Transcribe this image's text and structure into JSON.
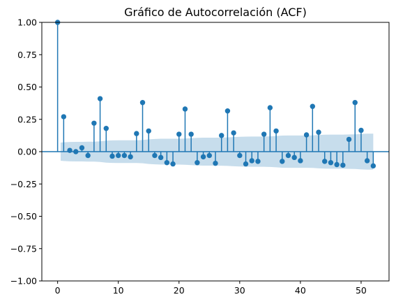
{
  "colors": {
    "marker": "#1f77b4",
    "band": "#1f77b4",
    "axis": "#000000",
    "background": "#ffffff"
  },
  "chart_data": {
    "type": "scatter",
    "style": "stem",
    "title": "Gráfico de Autocorrelación (ACF)",
    "xlabel": "",
    "ylabel": "",
    "xlim": [
      -2.6,
      54.6
    ],
    "ylim": [
      -1.0,
      1.0
    ],
    "xticks": [
      0,
      10,
      20,
      30,
      40,
      50
    ],
    "xtick_labels": [
      "0",
      "10",
      "20",
      "30",
      "40",
      "50"
    ],
    "yticks": [
      1.0,
      0.75,
      0.5,
      0.25,
      0.0,
      -0.25,
      -0.5,
      -0.75,
      -1.0
    ],
    "ytick_labels": [
      "1.00",
      "0.75",
      "0.50",
      "0.25",
      "0.00",
      "−0.25",
      "−0.50",
      "−0.75",
      "−1.00"
    ],
    "grid": false,
    "legend": false,
    "series": [
      {
        "lags": [
          0,
          1,
          2,
          3,
          4,
          5,
          6,
          7,
          8,
          9,
          10,
          11,
          12,
          13,
          14,
          15,
          16,
          17,
          18,
          19,
          20,
          21,
          22,
          23,
          24,
          25,
          26,
          27,
          28,
          29,
          30,
          31,
          32,
          33,
          34,
          35,
          36,
          37,
          38,
          39,
          40,
          41,
          42,
          43,
          44,
          45,
          46,
          47,
          48,
          49,
          50,
          51,
          52
        ],
        "values": [
          1.0,
          0.27,
          0.01,
          0.0,
          0.03,
          -0.03,
          0.22,
          0.41,
          0.18,
          -0.035,
          -0.03,
          -0.03,
          -0.04,
          0.14,
          0.38,
          0.16,
          -0.03,
          -0.045,
          -0.085,
          -0.095,
          0.135,
          0.33,
          0.135,
          -0.085,
          -0.04,
          -0.03,
          -0.09,
          0.125,
          0.315,
          0.145,
          -0.03,
          -0.095,
          -0.07,
          -0.075,
          0.135,
          0.34,
          0.16,
          -0.075,
          -0.03,
          -0.045,
          -0.07,
          0.13,
          0.35,
          0.15,
          -0.075,
          -0.085,
          -0.1,
          -0.105,
          0.095,
          0.38,
          0.165,
          -0.07,
          -0.11
        ]
      }
    ],
    "confidence_band": {
      "lags": [
        0,
        1,
        2,
        3,
        4,
        5,
        6,
        7,
        8,
        9,
        10,
        11,
        12,
        13,
        14,
        15,
        16,
        17,
        18,
        19,
        20,
        21,
        22,
        23,
        24,
        25,
        26,
        27,
        28,
        29,
        30,
        31,
        32,
        33,
        34,
        35,
        36,
        37,
        38,
        39,
        40,
        41,
        42,
        43,
        44,
        45,
        46,
        47,
        48,
        49,
        50,
        51,
        52
      ],
      "upper": [
        0.07,
        0.072,
        0.075,
        0.076,
        0.076,
        0.077,
        0.077,
        0.08,
        0.085,
        0.087,
        0.088,
        0.088,
        0.088,
        0.088,
        0.09,
        0.095,
        0.098,
        0.1,
        0.1,
        0.1,
        0.1,
        0.101,
        0.104,
        0.107,
        0.108,
        0.108,
        0.108,
        0.109,
        0.11,
        0.113,
        0.115,
        0.116,
        0.117,
        0.117,
        0.117,
        0.118,
        0.121,
        0.124,
        0.125,
        0.125,
        0.125,
        0.125,
        0.126,
        0.129,
        0.131,
        0.132,
        0.132,
        0.132,
        0.133,
        0.134,
        0.137,
        0.139,
        0.139
      ],
      "lower": [
        -0.07,
        -0.072,
        -0.075,
        -0.076,
        -0.076,
        -0.077,
        -0.077,
        -0.08,
        -0.085,
        -0.087,
        -0.088,
        -0.088,
        -0.088,
        -0.088,
        -0.09,
        -0.095,
        -0.098,
        -0.1,
        -0.1,
        -0.1,
        -0.1,
        -0.101,
        -0.104,
        -0.107,
        -0.108,
        -0.108,
        -0.108,
        -0.109,
        -0.11,
        -0.113,
        -0.115,
        -0.116,
        -0.117,
        -0.117,
        -0.117,
        -0.118,
        -0.121,
        -0.124,
        -0.125,
        -0.125,
        -0.125,
        -0.125,
        -0.126,
        -0.129,
        -0.131,
        -0.132,
        -0.132,
        -0.132,
        -0.133,
        -0.134,
        -0.137,
        -0.139,
        -0.139
      ]
    }
  }
}
